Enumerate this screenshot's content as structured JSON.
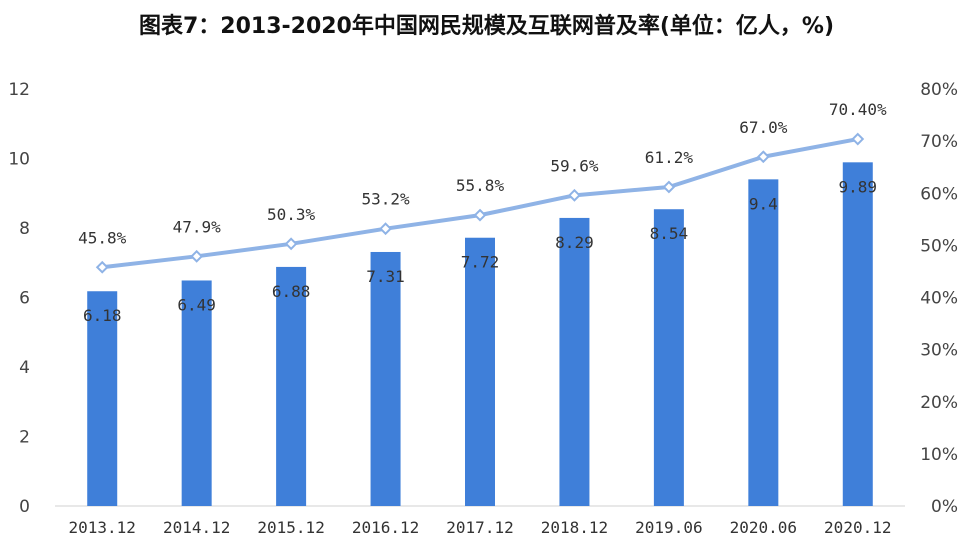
{
  "chart_data": {
    "type": "bar+line",
    "title": "图表7：2013-2020年中国网民规模及互联网普及率(单位：亿人，%)",
    "categories": [
      "2013.12",
      "2014.12",
      "2015.12",
      "2016.12",
      "2017.12",
      "2018.12",
      "2019.06",
      "2020.06",
      "2020.12"
    ],
    "series": [
      {
        "type": "bar",
        "axis": "left",
        "values": [
          6.18,
          6.49,
          6.88,
          7.31,
          7.72,
          8.29,
          8.54,
          9.4,
          9.89
        ],
        "labels": [
          "6.18",
          "6.49",
          "6.88",
          "7.31",
          "7.72",
          "8.29",
          "8.54",
          "9.4",
          "9.89"
        ],
        "color": "#3f7fd9"
      },
      {
        "type": "line",
        "axis": "right",
        "values": [
          45.8,
          47.9,
          50.3,
          53.2,
          55.8,
          59.6,
          61.2,
          67.0,
          70.4
        ],
        "labels": [
          "45.8%",
          "47.9%",
          "50.3%",
          "53.2%",
          "55.8%",
          "59.6%",
          "61.2%",
          "67.0%",
          "70.40%"
        ],
        "color": "#8fb3e6"
      }
    ],
    "y_left": {
      "ylim": [
        0,
        12
      ],
      "ticks": [
        "0",
        "2",
        "4",
        "6",
        "8",
        "10",
        "12"
      ]
    },
    "y_right": {
      "ylim": [
        0,
        80
      ],
      "ticks": [
        "0%",
        "10%",
        "20%",
        "30%",
        "40%",
        "50%",
        "60%",
        "70%",
        "80%"
      ]
    },
    "grid": false,
    "legend": "none"
  }
}
